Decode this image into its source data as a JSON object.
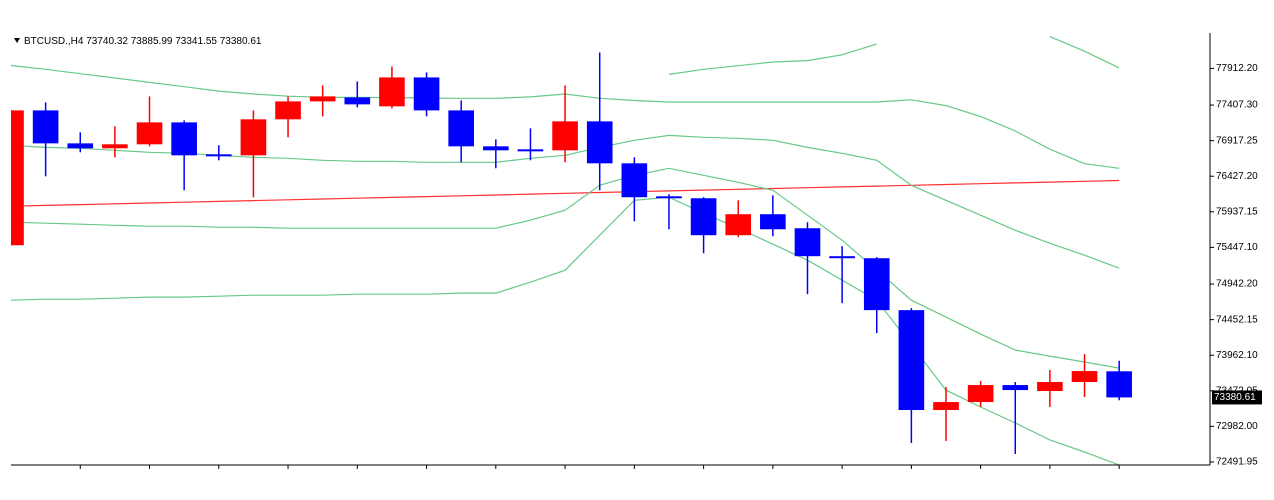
{
  "chart_data": {
    "type": "candlestick",
    "symbol": "BTCUSD.,H4",
    "up_color": "#ff0000",
    "down_color": "#0000ff",
    "open": [
      75477,
      77334,
      76880,
      76812,
      76867,
      77169,
      76729,
      76715,
      77211,
      77458,
      77513,
      77390,
      77788,
      77334,
      76839,
      76798,
      76784,
      77183,
      76605,
      76151,
      76124,
      75615,
      75904,
      75711,
      75326,
      75298,
      74583,
      73207,
      73317,
      73551,
      73469,
      73593,
      73740.32
    ],
    "high": [
      77340,
      77444,
      77032,
      77114,
      77527,
      77197,
      76853,
      77334,
      77527,
      77678,
      77733,
      77940,
      77857,
      77472,
      76935,
      77087,
      77678,
      78132,
      76688,
      76179,
      76138,
      76096,
      76165,
      75794,
      75464,
      75312,
      74611,
      73524,
      73606,
      73593,
      73758,
      73978,
      73885.99
    ],
    "low": [
      75470,
      76426,
      76757,
      76688,
      76839,
      76234,
      76647,
      76138,
      76963,
      77252,
      77376,
      77362,
      77252,
      76619,
      76537,
      76647,
      76619,
      76234,
      75807,
      75697,
      75367,
      75587,
      75601,
      74803,
      74679,
      74267,
      72753,
      72781,
      73249,
      72602,
      73249,
      73386,
      73341.55
    ],
    "close": [
      77334,
      76880,
      76812,
      76867,
      77169,
      76715,
      76702,
      77211,
      77458,
      77527,
      77417,
      77788,
      77334,
      76839,
      76784,
      76770,
      77183,
      76605,
      76138,
      76124,
      75615,
      75904,
      75697,
      75326,
      75298,
      74583,
      73207,
      73317,
      73551,
      73482,
      73593,
      73744,
      73380.61
    ],
    "lines": [
      {
        "color": "#ff3030",
        "values": [
          76014,
          76025,
          76036,
          76047,
          76058,
          76070,
          76081,
          76092,
          76103,
          76114,
          76125,
          76136,
          76147,
          76158,
          76169,
          76181,
          76192,
          76203,
          76214,
          76225,
          76236,
          76247,
          76258,
          76269,
          76280,
          76292,
          76303,
          76314,
          76325,
          76336,
          76347,
          76358,
          76369
        ]
      },
      {
        "color": "#66c987",
        "values": [
          77953,
          77900,
          77840,
          77780,
          77720,
          77660,
          77600,
          77560,
          77530,
          77513,
          77513,
          77510,
          77505,
          77500,
          77500,
          77520,
          77560,
          null,
          null,
          77830,
          77900,
          77950,
          78000,
          78020,
          78100,
          78250,
          null,
          null,
          null,
          null,
          78350,
          78150,
          77920
        ]
      },
      {
        "color": "#66c987",
        "values": [
          null,
          null,
          null,
          null,
          null,
          null,
          null,
          null,
          null,
          null,
          null,
          null,
          null,
          null,
          null,
          null,
          77560,
          77500,
          77470,
          77450,
          77450,
          77450,
          77450,
          77450,
          77450,
          77450,
          77480,
          77400,
          77250,
          77050,
          76800,
          76600,
          76536
        ]
      },
      {
        "color": "#66c987",
        "values": [
          76853,
          76825,
          76812,
          76784,
          76757,
          76743,
          76715,
          76688,
          76674,
          76646,
          76633,
          76633,
          76619,
          76619,
          76619,
          76674,
          76715,
          76825,
          76922,
          76990,
          76963,
          76949,
          76922,
          76825,
          76743,
          76646,
          76303,
          76096,
          75890,
          75683,
          75504,
          75339,
          75161
        ]
      },
      {
        "color": "#66c987",
        "values": [
          75794,
          75780,
          75766,
          75752,
          75739,
          75739,
          75725,
          75725,
          75711,
          75711,
          75711,
          75711,
          75711,
          75711,
          75711,
          75821,
          75959,
          76303,
          76440,
          76536,
          76440,
          76344,
          76234,
          75890,
          75546,
          75133,
          74720,
          74487,
          74253,
          74033,
          73950,
          73868,
          73785
        ]
      },
      {
        "color": "#66c987",
        "values": [
          74720,
          74734,
          74734,
          74748,
          74762,
          74762,
          74775,
          74789,
          74789,
          74789,
          74803,
          74803,
          74803,
          74817,
          74817,
          74968,
          75133,
          75615,
          76096,
          76138,
          75917,
          75711,
          75491,
          75271,
          74996,
          74720,
          74102,
          73482,
          73249,
          73029,
          72794,
          72629,
          72450
        ]
      }
    ],
    "ylim": [
      72450,
      78400
    ],
    "yticks": [
      {
        "value": 77912.2,
        "label": "77912.20"
      },
      {
        "value": 77407.3,
        "label": "77407.30"
      },
      {
        "value": 76917.25,
        "label": "76917.25"
      },
      {
        "value": 76427.2,
        "label": "76427.20"
      },
      {
        "value": 75937.15,
        "label": "75937.15"
      },
      {
        "value": 75447.1,
        "label": "75447.10"
      },
      {
        "value": 74942.2,
        "label": "74942.20"
      },
      {
        "value": 74452.15,
        "label": "74452.15"
      },
      {
        "value": 73962.1,
        "label": "73962.10"
      },
      {
        "value": 73472.05,
        "label": "73472.05"
      },
      {
        "value": 72982,
        "label": "72982.00"
      },
      {
        "value": 72491.95,
        "label": "72491.95"
      }
    ],
    "grid": false
  }
}
